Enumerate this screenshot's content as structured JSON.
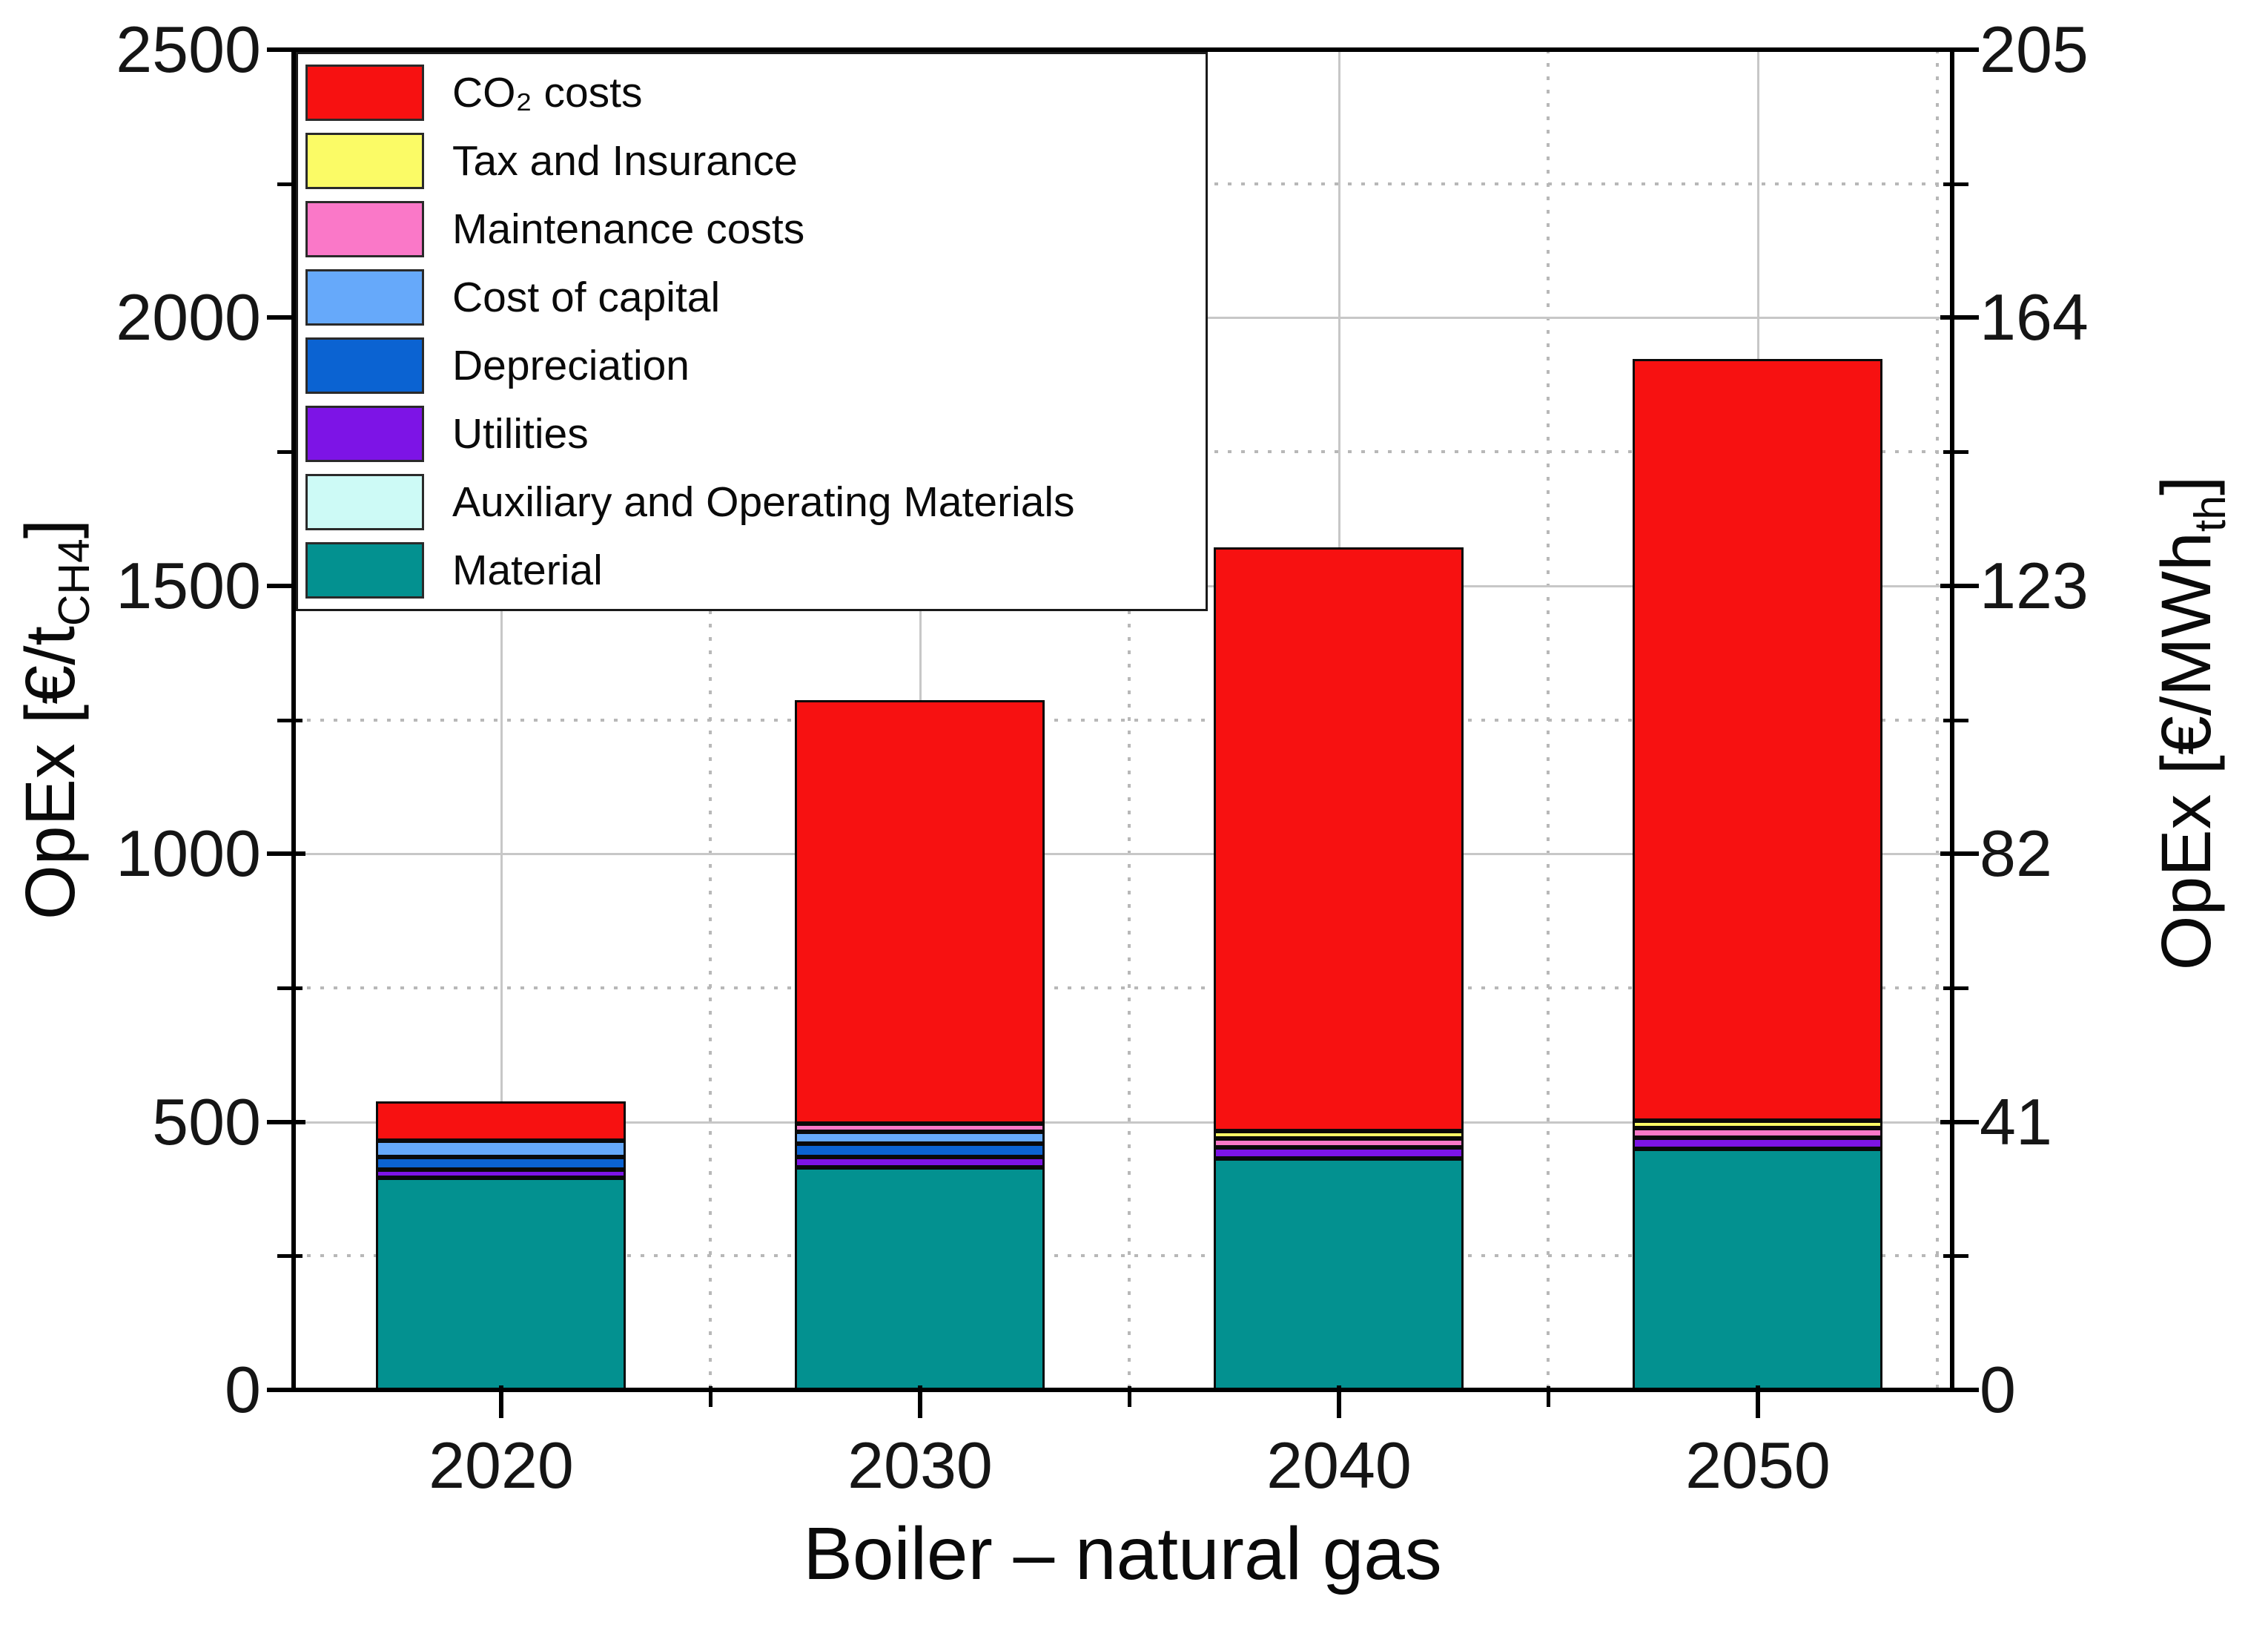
{
  "chart_data": {
    "type": "bar",
    "stacked": true,
    "title": "",
    "xlabel": "Boiler – natural gas",
    "ylabel_left_parts": {
      "pre": "OpEx [€/t",
      "sub": "CH4",
      "post": "]"
    },
    "ylabel_right_parts": {
      "pre": "OpEx [€/MWh",
      "sub": "th",
      "post": "]"
    },
    "categories": [
      "2020",
      "2030",
      "2040",
      "2050"
    ],
    "y_left": {
      "min": 0,
      "max": 2500,
      "major_ticks": [
        2500,
        2000,
        1500,
        1000,
        500,
        0
      ],
      "minor_step": 250
    },
    "y_right": {
      "min": 0,
      "max": 205,
      "major_ticks": [
        "205",
        "164",
        "123",
        "82",
        "41",
        "0"
      ]
    },
    "grid": {
      "major_style": "solid",
      "minor_style": "dotted"
    },
    "legend_position": "top-left",
    "series": [
      {
        "name": "CO₂ costs",
        "color": "#f71111",
        "values": [
          73,
          790,
          1089,
          1421
        ]
      },
      {
        "name": "Tax and Insurance",
        "color": "#fbfb66",
        "values": [
          0,
          0,
          14,
          13
        ]
      },
      {
        "name": "Maintenance costs",
        "color": "#fa78c8",
        "values": [
          0,
          15,
          17,
          19
        ]
      },
      {
        "name": "Cost of capital",
        "color": "#66a9fa",
        "values": [
          30,
          23,
          0,
          0
        ]
      },
      {
        "name": "Depreciation",
        "color": "#0b63d2",
        "values": [
          24,
          24,
          0,
          0
        ]
      },
      {
        "name": "Utilities",
        "color": "#7d14e6",
        "values": [
          16,
          20,
          20,
          20
        ]
      },
      {
        "name": "Auxiliary and Operating Materials",
        "color": "#cdfaf6",
        "values": [
          0,
          0,
          0,
          0
        ]
      },
      {
        "name": "Material",
        "color": "#039190",
        "values": [
          395,
          415,
          432,
          450
        ]
      }
    ],
    "stack_order_bottom_to_top": [
      "Material",
      "Auxiliary and Operating Materials",
      "Utilities",
      "Depreciation",
      "Cost of capital",
      "Maintenance costs",
      "Tax and Insurance",
      "CO₂ costs"
    ],
    "totals": [
      538,
      1287,
      1572,
      1923
    ]
  }
}
